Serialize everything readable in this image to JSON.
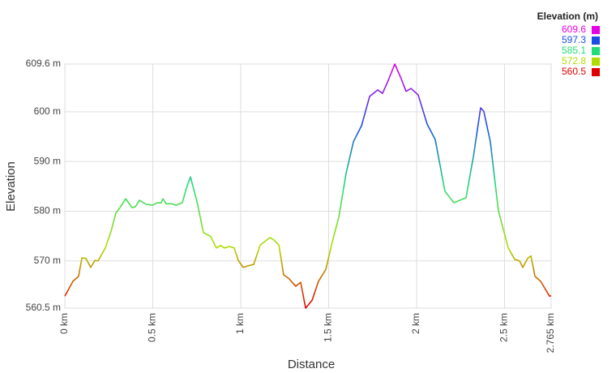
{
  "chart_data": {
    "type": "line",
    "x_label": "Distance",
    "y_label": "Elevation",
    "legend_title": "Elevation (m)",
    "x": [
      0,
      0.046,
      0.078,
      0.097,
      0.12,
      0.147,
      0.171,
      0.189,
      0.23,
      0.263,
      0.29,
      0.313,
      0.346,
      0.382,
      0.401,
      0.424,
      0.461,
      0.498,
      0.525,
      0.548,
      0.558,
      0.576,
      0.608,
      0.631,
      0.668,
      0.691,
      0.714,
      0.751,
      0.788,
      0.829,
      0.862,
      0.885,
      0.908,
      0.935,
      0.963,
      0.986,
      1.014,
      1.041,
      1.074,
      1.111,
      1.166,
      1.189,
      1.217,
      1.244,
      1.272,
      1.313,
      1.341,
      1.369,
      1.406,
      1.442,
      1.484,
      1.521,
      1.558,
      1.599,
      1.641,
      1.687,
      1.733,
      1.779,
      1.806,
      1.834,
      1.876,
      1.912,
      1.94,
      1.968,
      2.009,
      2.06,
      2.106,
      2.161,
      2.212,
      2.281,
      2.323,
      2.364,
      2.382,
      2.419,
      2.465,
      2.521,
      2.558,
      2.585,
      2.604,
      2.631,
      2.65,
      2.673,
      2.705,
      2.756,
      2.765
    ],
    "values": [
      562.9,
      565.9,
      566.9,
      570.6,
      570.5,
      568.7,
      570.1,
      570,
      572.6,
      576,
      579.6,
      580.7,
      582.5,
      580.7,
      580.9,
      582.2,
      581.4,
      581.2,
      581.7,
      581.7,
      582.5,
      581.5,
      581.5,
      581.2,
      581.7,
      584.6,
      586.9,
      582,
      575.7,
      574.9,
      572.6,
      573.1,
      572.6,
      572.9,
      572.6,
      570.1,
      568.7,
      569,
      569.3,
      573.2,
      574.7,
      574.2,
      573.2,
      567.2,
      566.5,
      564.9,
      565.7,
      560.5,
      562.1,
      565.9,
      568.3,
      573.9,
      578.8,
      587.6,
      594,
      597.2,
      603.1,
      604.4,
      603.7,
      605.9,
      609.6,
      606.7,
      604.1,
      604.7,
      603.4,
      597.5,
      594.4,
      584,
      581.7,
      582.7,
      591,
      600.8,
      600.1,
      594,
      580.1,
      572.6,
      570.3,
      570,
      568.7,
      570.5,
      571,
      566.9,
      565.9,
      562.9,
      563
    ],
    "xlim": [
      0,
      2.765
    ],
    "ylim": [
      560.5,
      609.6
    ],
    "xticks": [
      {
        "value": 0,
        "label": "0 km"
      },
      {
        "value": 0.5,
        "label": "0.5 km"
      },
      {
        "value": 1,
        "label": "1 km"
      },
      {
        "value": 1.5,
        "label": "1.5 km"
      },
      {
        "value": 2,
        "label": "2 km"
      },
      {
        "value": 2.5,
        "label": "2.5 km"
      },
      {
        "value": 2.765,
        "label": "2.765 km"
      }
    ],
    "yticks": [
      {
        "value": 560.5,
        "label": "560.5 m"
      },
      {
        "value": 570,
        "label": "570 m"
      },
      {
        "value": 580,
        "label": "580 m"
      },
      {
        "value": 590,
        "label": "590 m"
      },
      {
        "value": 600,
        "label": "600 m"
      },
      {
        "value": 609.6,
        "label": "609.6 m"
      }
    ],
    "grid": true,
    "color_scale": [
      {
        "value": 609.6,
        "color": "#e600e6"
      },
      {
        "value": 597.3,
        "color": "#1a4fe6"
      },
      {
        "value": 585.1,
        "color": "#22dd77"
      },
      {
        "value": 572.8,
        "color": "#b0dd00"
      },
      {
        "value": 560.5,
        "color": "#e00000"
      }
    ]
  }
}
